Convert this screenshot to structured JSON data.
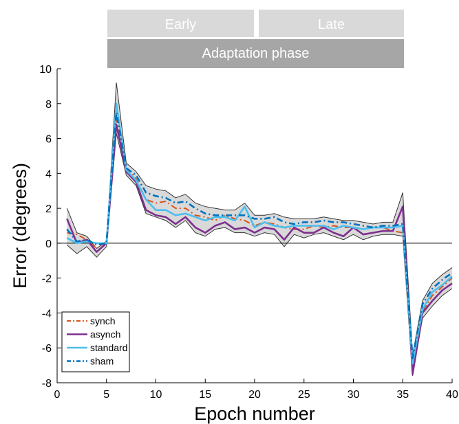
{
  "phases": {
    "early": "Early",
    "late": "Late",
    "adaptation": "Adaptation phase"
  },
  "chart_data": {
    "type": "line",
    "title": "",
    "xlabel": "Epoch number",
    "ylabel": "Error (degrees)",
    "xlim": [
      0,
      40
    ],
    "ylim": [
      -8,
      10
    ],
    "xticks": [
      0,
      5,
      10,
      15,
      20,
      25,
      30,
      35,
      40
    ],
    "yticks": [
      -8,
      -6,
      -4,
      -2,
      0,
      2,
      4,
      6,
      8,
      10
    ],
    "grid": false,
    "reference_line_y": 0,
    "legend_position": "bottom-left",
    "x": [
      1,
      2,
      3,
      4,
      5,
      6,
      7,
      8,
      9,
      10,
      11,
      12,
      13,
      14,
      15,
      16,
      17,
      18,
      19,
      20,
      21,
      22,
      23,
      24,
      25,
      26,
      27,
      28,
      29,
      30,
      31,
      32,
      33,
      34,
      35,
      36,
      37,
      38,
      39,
      40
    ],
    "series": [
      {
        "name": "synch",
        "color": "#d95319",
        "style": "dashdot",
        "width": 2,
        "values": [
          0.6,
          0.5,
          0.2,
          -0.3,
          0.1,
          7.2,
          4.3,
          3.7,
          2.5,
          2.3,
          2.4,
          2.0,
          2.0,
          1.6,
          1.5,
          1.3,
          1.6,
          1.4,
          1.3,
          1.0,
          1.2,
          1.1,
          0.9,
          0.8,
          0.8,
          1.0,
          0.9,
          1.0,
          0.9,
          0.9,
          0.8,
          0.9,
          0.9,
          0.7,
          0.6,
          -7.0,
          -3.9,
          -3.0,
          -2.5,
          -2.0
        ]
      },
      {
        "name": "asynch",
        "color": "#7e2f8e",
        "style": "solid",
        "width": 2.6,
        "values": [
          1.4,
          0.0,
          0.2,
          -0.5,
          0.0,
          6.8,
          4.1,
          3.5,
          1.9,
          1.6,
          1.5,
          1.1,
          1.5,
          0.9,
          0.6,
          1.0,
          1.2,
          0.8,
          0.9,
          0.6,
          0.9,
          0.8,
          0.2,
          0.9,
          0.6,
          0.6,
          0.9,
          0.6,
          0.4,
          0.9,
          0.5,
          0.6,
          0.7,
          0.7,
          2.1,
          -7.5,
          -4.0,
          -3.3,
          -2.7,
          -2.3
        ]
      },
      {
        "name": "standard",
        "color": "#4dbeee",
        "style": "solid",
        "width": 2.6,
        "values": [
          0.3,
          0.0,
          0.1,
          0.0,
          0.0,
          8.0,
          4.2,
          3.6,
          2.5,
          1.9,
          1.9,
          1.6,
          1.7,
          1.5,
          1.3,
          1.5,
          1.5,
          1.3,
          2.1,
          0.9,
          1.2,
          1.0,
          0.9,
          1.0,
          1.0,
          1.0,
          1.0,
          0.8,
          1.0,
          0.9,
          0.8,
          0.9,
          0.9,
          0.9,
          1.0,
          -6.9,
          -3.8,
          -2.8,
          -2.4,
          -1.9
        ]
      },
      {
        "name": "sham",
        "color": "#0072bd",
        "style": "dashdot",
        "width": 2.6,
        "values": [
          0.8,
          0.1,
          0.2,
          -0.1,
          0.0,
          7.5,
          4.3,
          3.9,
          2.9,
          2.7,
          2.6,
          2.3,
          2.4,
          2.0,
          1.7,
          1.6,
          1.6,
          1.6,
          1.6,
          1.4,
          1.4,
          1.5,
          1.2,
          1.1,
          1.2,
          1.2,
          1.3,
          1.2,
          1.2,
          1.1,
          1.0,
          0.9,
          1.0,
          1.0,
          1.1,
          -6.6,
          -3.5,
          -2.6,
          -2.1,
          -1.7
        ]
      }
    ],
    "band": {
      "color": "#cccccc",
      "edge_color": "#333333",
      "upper": [
        2.0,
        0.6,
        0.4,
        -0.3,
        0.1,
        9.2,
        4.6,
        4.1,
        3.3,
        3.1,
        3.0,
        2.6,
        2.8,
        2.3,
        2.1,
        2.0,
        1.9,
        1.9,
        2.3,
        1.6,
        1.6,
        1.7,
        1.5,
        1.4,
        1.4,
        1.4,
        1.5,
        1.4,
        1.3,
        1.3,
        1.2,
        1.1,
        1.2,
        1.2,
        2.9,
        -6.4,
        -3.3,
        -2.3,
        -1.8,
        -1.4
      ],
      "lower": [
        -0.1,
        -0.6,
        -0.2,
        -0.8,
        -0.2,
        6.3,
        3.9,
        3.3,
        1.7,
        1.5,
        1.3,
        0.9,
        1.3,
        0.6,
        0.4,
        0.8,
        0.9,
        0.6,
        0.6,
        0.4,
        0.6,
        0.5,
        -0.2,
        0.5,
        0.3,
        0.5,
        0.6,
        0.4,
        0.2,
        0.5,
        0.2,
        0.4,
        0.5,
        0.5,
        0.4,
        -7.6,
        -4.3,
        -3.6,
        -3.0,
        -2.6
      ]
    }
  }
}
